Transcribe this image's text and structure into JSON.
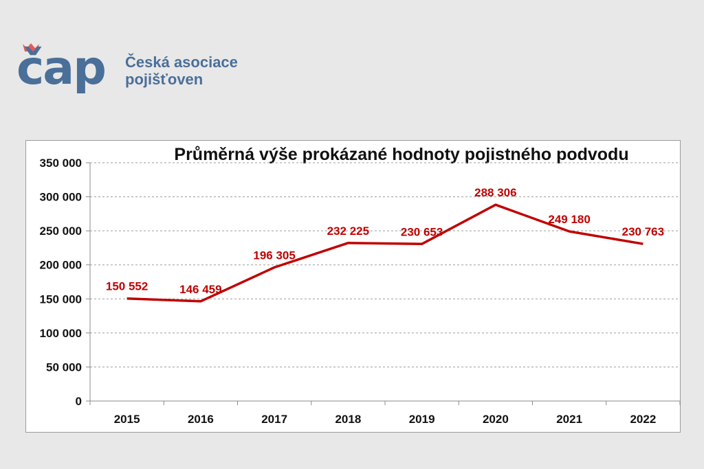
{
  "logo": {
    "mark": "čap",
    "line1": "Česká asociace",
    "line2": "pojišťoven"
  },
  "colors": {
    "brand": "#4a6f99",
    "crown": "#e35a5a",
    "series": "#c00000",
    "label": "#c00000"
  },
  "chart_data": {
    "type": "line",
    "title": "Průměrná výše prokázané hodnoty pojistného podvodu",
    "xlabel": "",
    "ylabel": "",
    "ylim": [
      0,
      350000
    ],
    "grid": true,
    "legend": "none",
    "categories": [
      "2015",
      "2016",
      "2017",
      "2018",
      "2019",
      "2020",
      "2021",
      "2022"
    ],
    "yticks": [
      "0",
      "50 000",
      "100 000",
      "150 000",
      "200 000",
      "250 000",
      "300 000",
      "350 000"
    ],
    "series": [
      {
        "values": [
          150552,
          146459,
          196305,
          232225,
          230653,
          288306,
          249180,
          230763
        ],
        "labels": [
          "150 552",
          "146 459",
          "196 305",
          "232 225",
          "230 653",
          "288 306",
          "249 180",
          "230 763"
        ]
      }
    ]
  }
}
